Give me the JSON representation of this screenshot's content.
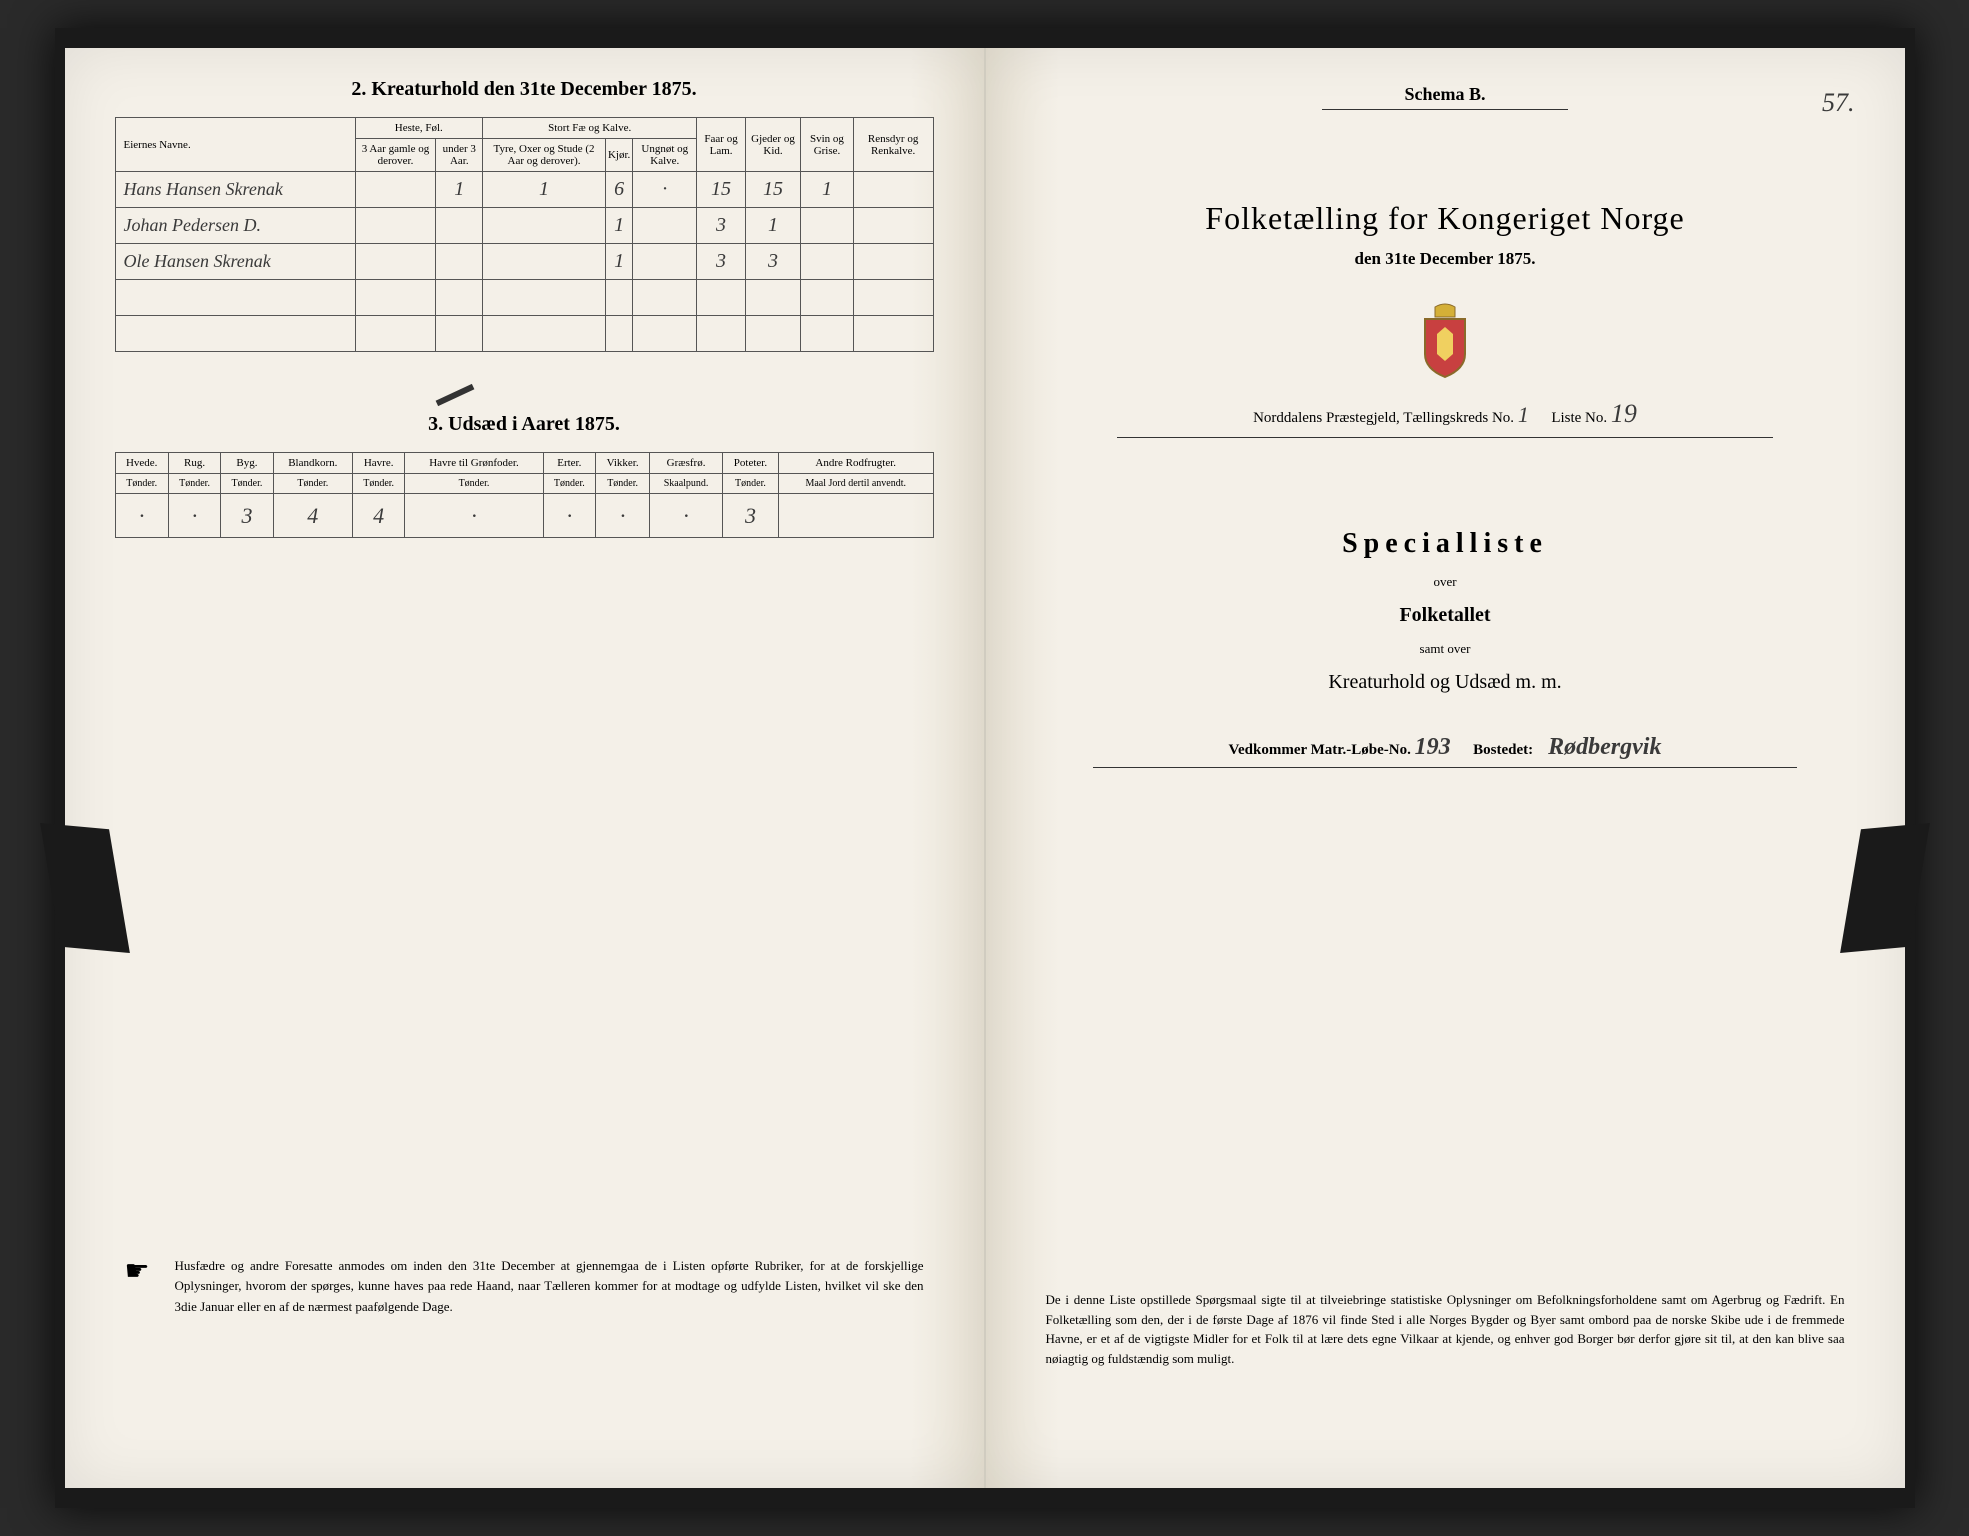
{
  "left": {
    "section2_title": "2. Kreaturhold den 31te December 1875.",
    "section3_title": "3. Udsæd i Aaret 1875.",
    "table1": {
      "headers": {
        "name": "Eiernes Navne.",
        "heste_group": "Heste, Føl.",
        "heste_a": "3 Aar gamle og derover.",
        "heste_b": "under 3 Aar.",
        "stort_group": "Stort Fæ og Kalve.",
        "stort_a": "Tyre, Oxer og Stude (2 Aar og derover).",
        "stort_b": "Kjør.",
        "stort_c": "Ungnøt og Kalve.",
        "faar": "Faar og Lam.",
        "gjeder": "Gjeder og Kid.",
        "svin": "Svin og Grise.",
        "ren": "Rensdyr og Renkalve."
      },
      "rows": [
        {
          "name": "Hans Hansen Skrenak",
          "heste_a": "",
          "heste_b": "1",
          "stort_a": "1",
          "stort_b": "6",
          "stort_c": "·",
          "faar": "15",
          "gjeder": "15",
          "svin": "1",
          "ren": ""
        },
        {
          "name": "Johan Pedersen D.",
          "heste_a": "",
          "heste_b": "",
          "stort_a": "",
          "stort_b": "1",
          "stort_c": "",
          "faar": "3",
          "gjeder": "1",
          "svin": "",
          "ren": ""
        },
        {
          "name": "Ole Hansen Skrenak",
          "heste_a": "",
          "heste_b": "",
          "stort_a": "",
          "stort_b": "1",
          "stort_c": "",
          "faar": "3",
          "gjeder": "3",
          "svin": "",
          "ren": ""
        },
        {
          "name": "",
          "heste_a": "",
          "heste_b": "",
          "stort_a": "",
          "stort_b": "",
          "stort_c": "",
          "faar": "",
          "gjeder": "",
          "svin": "",
          "ren": ""
        },
        {
          "name": "",
          "heste_a": "",
          "heste_b": "",
          "stort_a": "",
          "stort_b": "",
          "stort_c": "",
          "faar": "",
          "gjeder": "",
          "svin": "",
          "ren": ""
        }
      ]
    },
    "table2": {
      "headers": [
        "Hvede.",
        "Rug.",
        "Byg.",
        "Blandkorn.",
        "Havre.",
        "Havre til Grønfoder.",
        "Erter.",
        "Vikker.",
        "Græsfrø.",
        "Poteter.",
        "Andre Rodfrugter."
      ],
      "subheaders": [
        "Tønder.",
        "Tønder.",
        "Tønder.",
        "Tønder.",
        "Tønder.",
        "Tønder.",
        "Tønder.",
        "Tønder.",
        "Skaalpund.",
        "Tønder.",
        "Maal Jord dertil anvendt."
      ],
      "row": [
        "·",
        "·",
        "3",
        "4",
        "4",
        "·",
        "·",
        "·",
        "·",
        "3",
        ""
      ]
    },
    "footer": "Husfædre og andre Foresatte anmodes om inden den 31te December at gjennemgaa de i Listen opførte Rubriker, for at de forskjellige Oplysninger, hvorom der spørges, kunne haves paa rede Haand, naar Tælleren kommer for at modtage og udfylde Listen, hvilket vil ske den 3die Januar eller en af de nærmest paafølgende Dage."
  },
  "right": {
    "page_number": "57.",
    "schema": "Schema B.",
    "main_title": "Folketælling for Kongeriget Norge",
    "sub_title": "den 31te December 1875.",
    "district_prefix": "Norddalens Præstegjeld, Tællingskreds No.",
    "district_no": "1",
    "liste_prefix": "Liste No.",
    "liste_no": "19",
    "specialliste": "Specialliste",
    "over": "over",
    "folketallet": "Folketallet",
    "samt": "samt over",
    "kreatur": "Kreaturhold og Udsæd m. m.",
    "vedkommer_prefix": "Vedkommer Matr.-Løbe-No.",
    "vedkommer_no": "193",
    "bostedet_prefix": "Bostedet:",
    "bostedet": "Rødbergvik",
    "footer": "De i denne Liste opstillede Spørgsmaal sigte til at tilveiebringe statistiske Oplysninger om Befolkningsforholdene samt om Agerbrug og Fædrift. En Folketælling som den, der i de første Dage af 1876 vil finde Sted i alle Norges Bygder og Byer samt ombord paa de norske Skibe ude i de fremmede Havne, er et af de vigtigste Midler for et Folk til at lære dets egne Vilkaar at kjende, og enhver god Borger bør derfor gjøre sit til, at den kan blive saa nøiagtig og fuldstændig som muligt."
  }
}
